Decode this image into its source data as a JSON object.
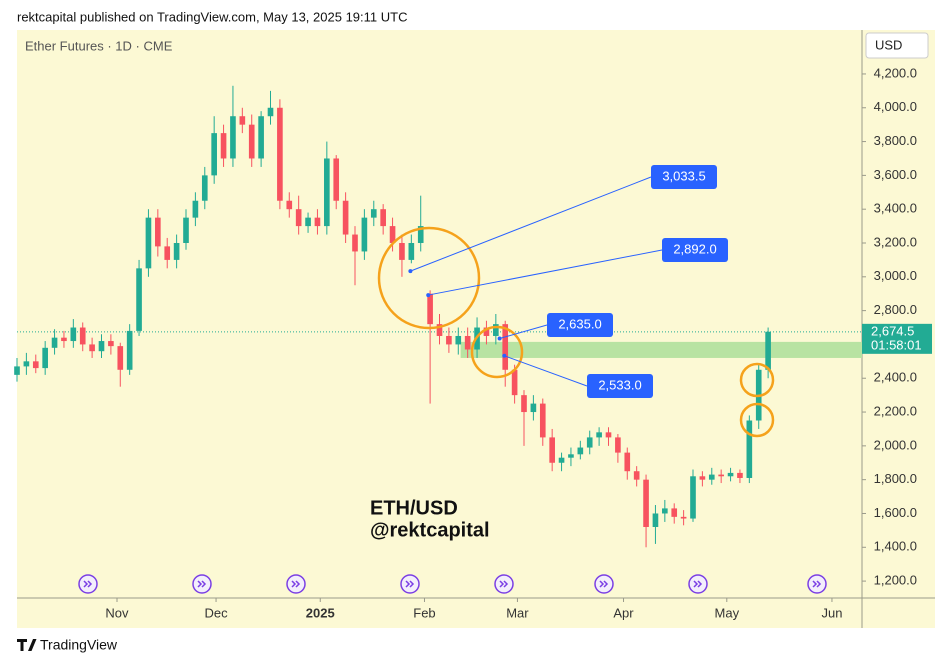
{
  "header": {
    "text": "rektcapital published on TradingView.com, May 13, 2025 19:11 UTC"
  },
  "chart_data": {
    "type": "candlestick",
    "title": "Ether Futures · 1D · CME",
    "currency": "USD",
    "up_color": "#22ab94",
    "down_color": "#f7525f",
    "x": [
      0,
      2,
      4,
      6,
      8,
      10,
      12,
      14,
      16,
      18,
      20,
      22,
      24,
      26,
      28,
      30,
      32,
      34,
      36,
      38,
      40,
      42,
      44,
      46,
      48,
      50,
      52,
      54,
      56,
      58,
      60,
      62,
      64,
      66,
      68,
      70,
      72,
      74,
      76,
      78,
      80,
      82,
      84,
      86,
      88,
      90,
      92,
      94,
      96,
      98,
      100,
      102,
      104,
      106,
      108,
      110,
      112,
      114,
      116,
      118,
      120,
      122,
      124,
      126,
      128,
      130,
      132,
      134,
      136,
      138,
      140,
      142,
      144,
      146,
      148,
      150,
      152,
      154,
      156,
      158,
      160
    ],
    "open": [
      2420,
      2470,
      2500,
      2460,
      2580,
      2640,
      2620,
      2700,
      2600,
      2560,
      2620,
      2590,
      2450,
      2680,
      3050,
      3350,
      3180,
      3100,
      3200,
      3350,
      3450,
      3600,
      3850,
      3700,
      3950,
      3900,
      3700,
      3950,
      4000,
      3450,
      3400,
      3300,
      3350,
      3300,
      3700,
      3450,
      3250,
      3150,
      3350,
      3400,
      3300,
      3200,
      3100,
      3200,
      2900,
      2720,
      2650,
      2600,
      2650,
      2570,
      2700,
      2650,
      2720,
      2450,
      2300,
      2200,
      2250,
      2050,
      1900,
      1930,
      1950,
      1990,
      2050,
      2080,
      2050,
      1960,
      1850,
      1800,
      1520,
      1600,
      1630,
      1580,
      1570,
      1820,
      1800,
      1830,
      1820,
      1840,
      1810,
      2150,
      2450
    ],
    "high": [
      2520,
      2550,
      2540,
      2620,
      2690,
      2680,
      2750,
      2730,
      2640,
      2660,
      2660,
      2610,
      2720,
      3100,
      3400,
      3400,
      3230,
      3250,
      3400,
      3500,
      3650,
      3950,
      3900,
      4130,
      4000,
      3960,
      3980,
      4100,
      4050,
      3500,
      3480,
      3380,
      3400,
      3800,
      3720,
      3500,
      3300,
      3400,
      3450,
      3430,
      3350,
      3250,
      3250,
      3480,
      2920,
      2780,
      2700,
      2700,
      2700,
      2760,
      2740,
      2780,
      2740,
      2480,
      2330,
      2300,
      2280,
      2100,
      1960,
      1990,
      2030,
      2090,
      2110,
      2110,
      2070,
      1990,
      1880,
      1830,
      1650,
      1680,
      1660,
      1620,
      1860,
      1850,
      1870,
      1860,
      1870,
      1860,
      2180,
      2480,
      2700
    ],
    "low": [
      2380,
      2420,
      2430,
      2420,
      2540,
      2580,
      2580,
      2560,
      2520,
      2520,
      2540,
      2350,
      2420,
      2650,
      3000,
      3120,
      3050,
      3050,
      3160,
      3300,
      3400,
      3550,
      3650,
      3650,
      3850,
      3650,
      3650,
      3900,
      3400,
      3350,
      3250,
      3260,
      3250,
      3250,
      3400,
      3200,
      2950,
      3100,
      3300,
      3250,
      3150,
      3000,
      3080,
      3150,
      2250,
      2600,
      2550,
      2540,
      2520,
      2520,
      2600,
      2600,
      2350,
      2250,
      2000,
      2150,
      2000,
      1850,
      1850,
      1880,
      1920,
      1950,
      2000,
      2000,
      1900,
      1800,
      1760,
      1400,
      1420,
      1550,
      1540,
      1530,
      1550,
      1760,
      1770,
      1780,
      1790,
      1780,
      1780,
      2100,
      2400
    ],
    "close": [
      2470,
      2500,
      2460,
      2580,
      2640,
      2620,
      2700,
      2600,
      2560,
      2620,
      2590,
      2450,
      2680,
      3050,
      3350,
      3180,
      3100,
      3200,
      3350,
      3450,
      3600,
      3850,
      3700,
      3950,
      3900,
      3700,
      3950,
      4000,
      3450,
      3400,
      3300,
      3350,
      3300,
      3700,
      3450,
      3250,
      3150,
      3350,
      3400,
      3300,
      3200,
      3100,
      3200,
      3300,
      2720,
      2650,
      2600,
      2650,
      2570,
      2700,
      2650,
      2720,
      2450,
      2300,
      2200,
      2250,
      2050,
      1900,
      1930,
      1950,
      1990,
      2050,
      2080,
      2050,
      1960,
      1850,
      1800,
      1520,
      1600,
      1630,
      1580,
      1570,
      1820,
      1800,
      1830,
      1820,
      1840,
      1810,
      2150,
      2450,
      2675
    ],
    "xlim": [
      0,
      180
    ],
    "ylim": [
      1100,
      4460
    ],
    "yticks": [
      {
        "value": 1200,
        "label": "1,200.0"
      },
      {
        "value": 1400,
        "label": "1,400.0"
      },
      {
        "value": 1600,
        "label": "1,600.0"
      },
      {
        "value": 1800,
        "label": "1,800.0"
      },
      {
        "value": 2000,
        "label": "2,000.0"
      },
      {
        "value": 2200,
        "label": "2,200.0"
      },
      {
        "value": 2400,
        "label": "2,400.0"
      },
      {
        "value": 2600,
        "label": "2,600.0"
      },
      {
        "value": 2800,
        "label": "2,800.0"
      },
      {
        "value": 3000,
        "label": "3,000.0"
      },
      {
        "value": 3200,
        "label": "3,200.0"
      },
      {
        "value": 3400,
        "label": "3,400.0"
      },
      {
        "value": 3600,
        "label": "3,600.0"
      },
      {
        "value": 3800,
        "label": "3,800.0"
      },
      {
        "value": 4000,
        "label": "4,000.0"
      },
      {
        "value": 4200,
        "label": "4,200.0"
      }
    ],
    "xticks": [
      {
        "value": 21.3,
        "label": "Nov"
      },
      {
        "value": 42.4,
        "label": "Dec"
      },
      {
        "value": 64.6,
        "label": "2025"
      },
      {
        "value": 86.8,
        "label": "Feb"
      },
      {
        "value": 106.6,
        "label": "Mar"
      },
      {
        "value": 129.2,
        "label": "Apr"
      },
      {
        "value": 151.2,
        "label": "May"
      },
      {
        "value": 173.6,
        "label": "Jun"
      }
    ],
    "zone": {
      "x_start": 94.5,
      "low": 2520,
      "high": 2615,
      "color": "#b8e3a2"
    },
    "last_price": {
      "value": 2674.5,
      "label": "2,674.5"
    },
    "countdown": "01:58:01",
    "annotations": [
      {
        "x": 83.8,
        "value": 3033.5,
        "label": "3,033.5"
      },
      {
        "x": 87.6,
        "value": 2892.0,
        "label": "2,892.0"
      },
      {
        "x": 102.8,
        "value": 2635.0,
        "label": "2,635.0"
      },
      {
        "x": 103.8,
        "value": 2533.0,
        "label": "2,533.0"
      }
    ],
    "watermark": [
      "ETH/USD",
      "@rektcapital"
    ]
  },
  "footer": {
    "brand": "TradingView"
  }
}
